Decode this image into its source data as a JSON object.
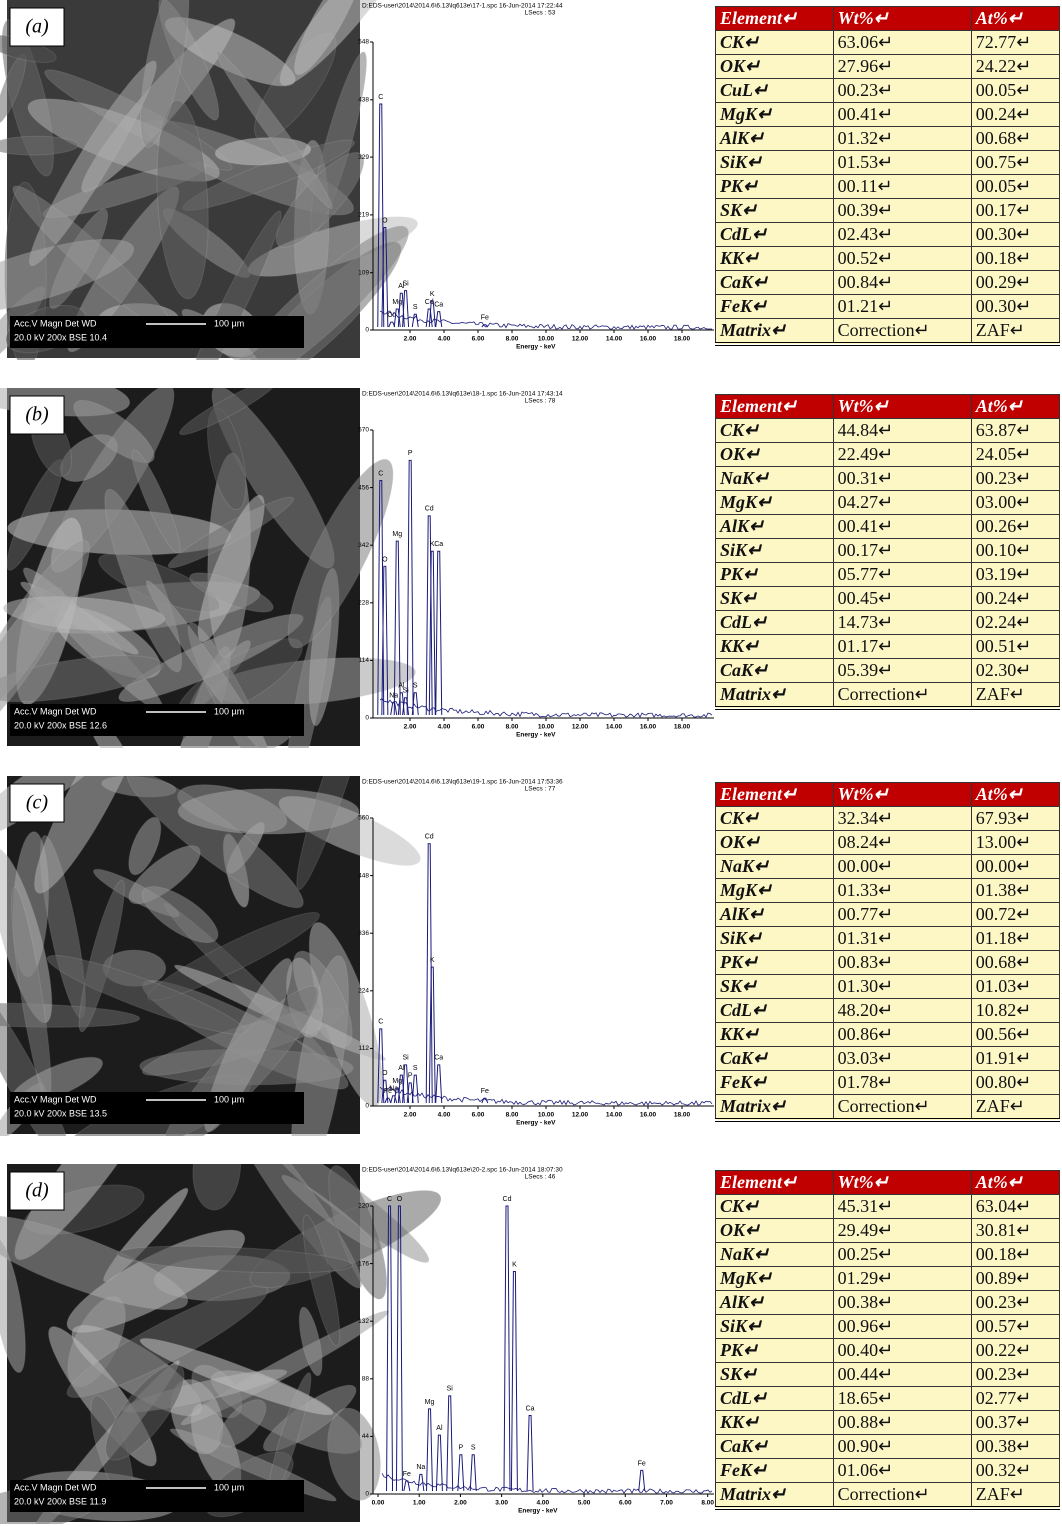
{
  "panels": [
    {
      "label": "(a)",
      "sem": {
        "info_header": "Acc.V  Magn   Det  WD",
        "info_values": "20.0 kV 200x   BSE 10.4",
        "scale": "100 µm"
      },
      "spectrum": {
        "file": "D:EDS-user\\2014\\2014.6\\6.13\\lq613e\\17-1.spc  16-Jun-2014 17:22:44",
        "lsecs": "LSecs : 53",
        "xlim": [
          0,
          20
        ],
        "ylim": [
          0,
          548
        ],
        "yticks": [
          0,
          109,
          219,
          329,
          438,
          548
        ],
        "xticks": [
          {
            "value": 2,
            "label": "2.00"
          },
          {
            "value": 4,
            "label": "4.00"
          },
          {
            "value": 6,
            "label": "6.00"
          },
          {
            "value": 8,
            "label": "8.00"
          },
          {
            "value": 10,
            "label": "10.00"
          },
          {
            "value": 12,
            "label": "12.00"
          },
          {
            "value": 14,
            "label": "14.00"
          },
          {
            "value": 16,
            "label": "16.00"
          },
          {
            "value": 18,
            "label": "18.00"
          }
        ],
        "xlabel": "Energy - keV",
        "peaks": [
          {
            "label": "C",
            "x": 0.28,
            "y": 430
          },
          {
            "label": "O",
            "x": 0.52,
            "y": 195
          },
          {
            "label": "Cu",
            "x": 0.93,
            "y": 15
          },
          {
            "label": "Mg",
            "x": 1.25,
            "y": 40
          },
          {
            "label": "Al",
            "x": 1.49,
            "y": 70
          },
          {
            "label": "Si",
            "x": 1.74,
            "y": 75
          },
          {
            "label": "S",
            "x": 2.31,
            "y": 30
          },
          {
            "label": "Cd",
            "x": 3.13,
            "y": 40
          },
          {
            "label": "K",
            "x": 3.31,
            "y": 55
          },
          {
            "label": "Ca",
            "x": 3.69,
            "y": 35
          },
          {
            "label": "Fe",
            "x": 6.4,
            "y": 10
          }
        ]
      },
      "table": {
        "header": [
          "Element↵",
          "Wt%↵",
          "At%↵"
        ],
        "rows": [
          [
            "CK↵",
            "63.06↵",
            "72.77↵"
          ],
          [
            "OK↵",
            "27.96↵",
            "24.22↵"
          ],
          [
            "CuL↵",
            "00.23↵",
            "00.05↵"
          ],
          [
            "MgK↵",
            "00.41↵",
            "00.24↵"
          ],
          [
            "AlK↵",
            "01.32↵",
            "00.68↵"
          ],
          [
            "SiK↵",
            "01.53↵",
            "00.75↵"
          ],
          [
            "PK↵",
            "00.11↵",
            "00.05↵"
          ],
          [
            "SK↵",
            "00.39↵",
            "00.17↵"
          ],
          [
            "CdL↵",
            "02.43↵",
            "00.30↵"
          ],
          [
            "KK↵",
            "00.52↵",
            "00.18↵"
          ],
          [
            "CaK↵",
            "00.84↵",
            "00.29↵"
          ],
          [
            "FeK↵",
            "01.21↵",
            "00.30↵"
          ],
          [
            "Matrix↵",
            "Correction↵",
            "ZAF↵"
          ]
        ]
      }
    },
    {
      "label": "(b)",
      "sem": {
        "info_header": "Acc.V  Magn   Det  WD",
        "info_values": "20.0 kV 200x   BSE 12.6",
        "scale": "100 µm"
      },
      "spectrum": {
        "file": "D:EDS-user\\2014\\2014.6\\6.13\\lq613e\\18-1.spc  16-Jun-2014 17:43:14",
        "lsecs": "LSecs : 78",
        "xlim": [
          0,
          20
        ],
        "ylim": [
          0,
          570
        ],
        "yticks": [
          0,
          114,
          228,
          342,
          456,
          570
        ],
        "xticks": [
          {
            "value": 2,
            "label": "2.00"
          },
          {
            "value": 4,
            "label": "4.00"
          },
          {
            "value": 6,
            "label": "6.00"
          },
          {
            "value": 8,
            "label": "8.00"
          },
          {
            "value": 10,
            "label": "10.00"
          },
          {
            "value": 12,
            "label": "12.00"
          },
          {
            "value": 14,
            "label": "14.00"
          },
          {
            "value": 16,
            "label": "16.00"
          },
          {
            "value": 18,
            "label": "18.00"
          }
        ],
        "xlabel": "Energy - keV",
        "peaks": [
          {
            "label": "C",
            "x": 0.28,
            "y": 470
          },
          {
            "label": "O",
            "x": 0.52,
            "y": 300
          },
          {
            "label": "Na",
            "x": 1.04,
            "y": 30
          },
          {
            "label": "Mg",
            "x": 1.25,
            "y": 350
          },
          {
            "label": "Al",
            "x": 1.49,
            "y": 50
          },
          {
            "label": "Si",
            "x": 1.74,
            "y": 40
          },
          {
            "label": "P",
            "x": 2.01,
            "y": 510
          },
          {
            "label": "S",
            "x": 2.31,
            "y": 50
          },
          {
            "label": "Cd",
            "x": 3.13,
            "y": 400
          },
          {
            "label": "K",
            "x": 3.31,
            "y": 330
          },
          {
            "label": "Ca",
            "x": 3.69,
            "y": 330
          }
        ]
      },
      "table": {
        "header": [
          "Element↵",
          "Wt%↵",
          "At%↵"
        ],
        "rows": [
          [
            "CK↵",
            "44.84↵",
            "63.87↵"
          ],
          [
            "OK↵",
            "22.49↵",
            "24.05↵"
          ],
          [
            "NaK↵",
            "00.31↵",
            "00.23↵"
          ],
          [
            "MgK↵",
            "04.27↵",
            "03.00↵"
          ],
          [
            "AlK↵",
            "00.41↵",
            "00.26↵"
          ],
          [
            "SiK↵",
            "00.17↵",
            "00.10↵"
          ],
          [
            "PK↵",
            "05.77↵",
            "03.19↵"
          ],
          [
            "SK↵",
            "00.45↵",
            "00.24↵"
          ],
          [
            "CdL↵",
            "14.73↵",
            "02.24↵"
          ],
          [
            "KK↵",
            "01.17↵",
            "00.51↵"
          ],
          [
            "CaK↵",
            "05.39↵",
            "02.30↵"
          ],
          [
            "Matrix↵",
            "Correction↵",
            "ZAF↵"
          ]
        ]
      }
    },
    {
      "label": "(c)",
      "sem": {
        "info_header": "Acc.V  Magn   Det  WD",
        "info_values": "20.0 kV 200x   BSE 13.5",
        "scale": "100 µm"
      },
      "spectrum": {
        "file": "D:EDS-user\\2014\\2014.6\\6.13\\lq613e\\19-1.spc  16-Jun-2014 17:53:36",
        "lsecs": "LSecs : 77",
        "xlim": [
          0,
          20
        ],
        "ylim": [
          0,
          560
        ],
        "yticks": [
          0,
          112,
          224,
          336,
          448,
          560
        ],
        "xticks": [
          {
            "value": 2,
            "label": "2.00"
          },
          {
            "value": 4,
            "label": "4.00"
          },
          {
            "value": 6,
            "label": "6.00"
          },
          {
            "value": 8,
            "label": "8.00"
          },
          {
            "value": 10,
            "label": "10.00"
          },
          {
            "value": 12,
            "label": "12.00"
          },
          {
            "value": 14,
            "label": "14.00"
          },
          {
            "value": 16,
            "label": "16.00"
          },
          {
            "value": 18,
            "label": "18.00"
          }
        ],
        "xlabel": "Energy - keV",
        "peaks": [
          {
            "label": "C",
            "x": 0.28,
            "y": 150
          },
          {
            "label": "O",
            "x": 0.52,
            "y": 50
          },
          {
            "label": "Fe",
            "x": 0.7,
            "y": 15
          },
          {
            "label": "Na",
            "x": 1.04,
            "y": 20
          },
          {
            "label": "Mg",
            "x": 1.25,
            "y": 35
          },
          {
            "label": "Al",
            "x": 1.49,
            "y": 60
          },
          {
            "label": "Si",
            "x": 1.74,
            "y": 80
          },
          {
            "label": "P",
            "x": 2.01,
            "y": 45
          },
          {
            "label": "S",
            "x": 2.31,
            "y": 60
          },
          {
            "label": "Cd",
            "x": 3.13,
            "y": 510
          },
          {
            "label": "K",
            "x": 3.31,
            "y": 270
          },
          {
            "label": "Ca",
            "x": 3.69,
            "y": 80
          },
          {
            "label": "Fe",
            "x": 6.4,
            "y": 15
          }
        ]
      },
      "table": {
        "header": [
          "Element↵",
          "Wt%↵",
          "At%↵"
        ],
        "rows": [
          [
            "CK↵",
            "32.34↵",
            "67.93↵"
          ],
          [
            "OK↵",
            "08.24↵",
            "13.00↵"
          ],
          [
            "NaK↵",
            "00.00↵",
            "00.00↵"
          ],
          [
            "MgK↵",
            "01.33↵",
            "01.38↵"
          ],
          [
            "AlK↵",
            "00.77↵",
            "00.72↵"
          ],
          [
            "SiK↵",
            "01.31↵",
            "01.18↵"
          ],
          [
            "PK↵",
            "00.83↵",
            "00.68↵"
          ],
          [
            "SK↵",
            "01.30↵",
            "01.03↵"
          ],
          [
            "CdL↵",
            "48.20↵",
            "10.82↵"
          ],
          [
            "KK↵",
            "00.86↵",
            "00.56↵"
          ],
          [
            "CaK↵",
            "03.03↵",
            "01.91↵"
          ],
          [
            "FeK↵",
            "01.78↵",
            "00.80↵"
          ],
          [
            "Matrix↵",
            "Correction↵",
            "ZAF↵"
          ]
        ]
      }
    },
    {
      "label": "(d)",
      "sem": {
        "info_header": "Acc.V  Magn   Det  WD",
        "info_values": "20.0 kV 200x   BSE 11.9",
        "scale": "100 µm"
      },
      "spectrum": {
        "file": "D:EDS-user\\2014\\2014.6\\6.13\\lq613e\\20-2.spc  16-Jun-2014 18:07:30",
        "lsecs": "LSecs : 46",
        "xlim": [
          0,
          8.25
        ],
        "ylim": [
          0,
          220
        ],
        "yticks": [
          0,
          44,
          88,
          132,
          176,
          220
        ],
        "xticks": [
          {
            "value": 0,
            "label": "0.00"
          },
          {
            "value": 1,
            "label": "1.00"
          },
          {
            "value": 2,
            "label": "2.00"
          },
          {
            "value": 3,
            "label": "3.00"
          },
          {
            "value": 4,
            "label": "4.00"
          },
          {
            "value": 5,
            "label": "5.00"
          },
          {
            "value": 6,
            "label": "6.00"
          },
          {
            "value": 7,
            "label": "7.00"
          },
          {
            "value": 8,
            "label": "8.00"
          }
        ],
        "xlabel": "Energy - keV",
        "peaks": [
          {
            "label": "C",
            "x": 0.28,
            "y": 220
          },
          {
            "label": "O",
            "x": 0.52,
            "y": 220
          },
          {
            "label": "Fe",
            "x": 0.7,
            "y": 10
          },
          {
            "label": "Na",
            "x": 1.04,
            "y": 15
          },
          {
            "label": "Mg",
            "x": 1.25,
            "y": 65
          },
          {
            "label": "Al",
            "x": 1.49,
            "y": 45
          },
          {
            "label": "Si",
            "x": 1.74,
            "y": 75
          },
          {
            "label": "P",
            "x": 2.01,
            "y": 30
          },
          {
            "label": "S",
            "x": 2.31,
            "y": 30
          },
          {
            "label": "Cd",
            "x": 3.13,
            "y": 220
          },
          {
            "label": "K",
            "x": 3.31,
            "y": 170
          },
          {
            "label": "Ca",
            "x": 3.69,
            "y": 60
          },
          {
            "label": "Fe",
            "x": 6.4,
            "y": 18
          }
        ]
      },
      "table": {
        "header": [
          "Element↵",
          "Wt%↵",
          "At%↵"
        ],
        "rows": [
          [
            "CK↵",
            "45.31↵",
            "63.04↵"
          ],
          [
            "OK↵",
            "29.49↵",
            "30.81↵"
          ],
          [
            "NaK↵",
            "00.25↵",
            "00.18↵"
          ],
          [
            "MgK↵",
            "01.29↵",
            "00.89↵"
          ],
          [
            "AlK↵",
            "00.38↵",
            "00.23↵"
          ],
          [
            "SiK↵",
            "00.96↵",
            "00.57↵"
          ],
          [
            "PK↵",
            "00.40↵",
            "00.22↵"
          ],
          [
            "SK↵",
            "00.44↵",
            "00.23↵"
          ],
          [
            "CdL↵",
            "18.65↵",
            "02.77↵"
          ],
          [
            "KK↵",
            "00.88↵",
            "00.37↵"
          ],
          [
            "CaK↵",
            "00.90↵",
            "00.38↵"
          ],
          [
            "FeK↵",
            "01.06↵",
            "00.32↵"
          ],
          [
            "Matrix↵",
            "Correction↵",
            "ZAF↵"
          ]
        ]
      }
    }
  ]
}
